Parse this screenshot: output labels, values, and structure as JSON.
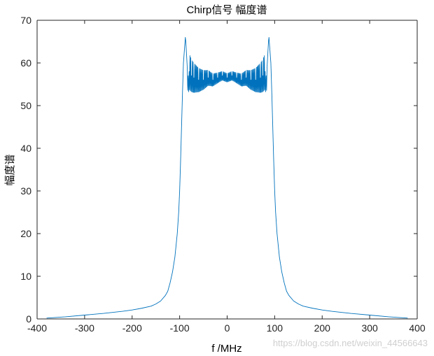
{
  "chart_data": {
    "type": "line",
    "title": "Chirp信号 幅度谱",
    "xlabel": "f /MHz",
    "ylabel": "幅度谱",
    "xlim": [
      -400,
      400
    ],
    "ylim": [
      0,
      70
    ],
    "xticks": [
      -400,
      -300,
      -200,
      -100,
      0,
      100,
      200,
      300,
      400
    ],
    "yticks": [
      0,
      10,
      20,
      30,
      40,
      50,
      60,
      70
    ],
    "grid": false,
    "line_color": "#0072BD",
    "series": [
      {
        "values_note_free": true,
        "x": [
          -380,
          -340,
          -300,
          -260,
          -220,
          -200,
          -180,
          -160,
          -150,
          -140,
          -130,
          -125,
          -120,
          -115,
          -110,
          -105,
          -102,
          -100,
          -98,
          -96,
          -94,
          -92,
          -90,
          -88,
          -87,
          -86,
          -84,
          -82,
          -80,
          -75,
          -70,
          -60,
          -50,
          -40,
          -30,
          -20,
          -10,
          0,
          10,
          20,
          30,
          40,
          50,
          60,
          70,
          75,
          80,
          82,
          84,
          86,
          87,
          88,
          90,
          92,
          94,
          96,
          98,
          100,
          102,
          105,
          110,
          115,
          120,
          125,
          130,
          140,
          150,
          160,
          180,
          200,
          220,
          260,
          300,
          340,
          380
        ],
        "y": [
          0.2,
          0.5,
          0.9,
          1.3,
          1.8,
          2.1,
          2.5,
          3.0,
          3.5,
          4.2,
          5.5,
          6.5,
          8.5,
          11,
          14.5,
          20,
          25,
          30,
          37,
          45,
          53,
          60,
          63,
          66,
          65,
          63,
          59,
          57,
          58,
          57,
          56.5,
          56,
          56,
          56.5,
          56,
          56.5,
          57,
          56.5,
          57,
          56.5,
          56,
          56.5,
          56,
          56,
          56.5,
          57,
          58,
          57,
          59,
          63,
          65,
          66,
          63,
          60,
          53,
          45,
          37,
          30,
          25,
          20,
          14.5,
          11,
          8.5,
          6.5,
          5.5,
          4.2,
          3.5,
          3.0,
          2.5,
          2.1,
          1.8,
          1.3,
          0.9,
          0.5,
          0.2
        ]
      }
    ]
  },
  "watermark": "https://blog.csdn.net/weixin_44566643"
}
